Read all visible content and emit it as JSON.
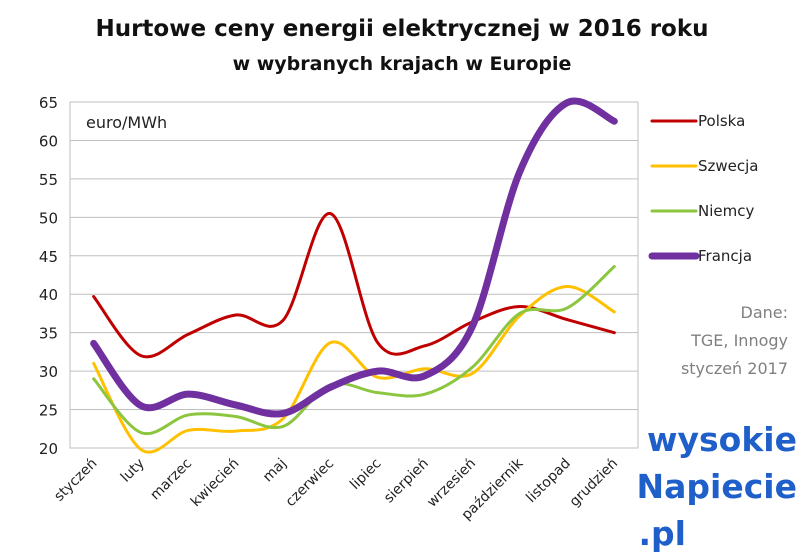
{
  "chart_data": {
    "type": "line",
    "title": "Hurtowe ceny energii elektrycznej w 2016 roku",
    "subtitle": "w wybranych krajach w Europie",
    "unit_label": "euro/MWh",
    "categories": [
      "styczeń",
      "luty",
      "marzec",
      "kwiecień",
      "maj",
      "czerwiec",
      "lipiec",
      "sierpień",
      "wrzesień",
      "październik",
      "listopad",
      "grudzień"
    ],
    "ylim": [
      20,
      65
    ],
    "yticks": [
      20,
      25,
      30,
      35,
      40,
      45,
      50,
      55,
      60,
      65
    ],
    "grid": true,
    "legend_position": "right",
    "series": [
      {
        "name": "Polska",
        "color": "#c00000",
        "values": [
          39.7,
          32.0,
          34.8,
          37.3,
          36.6,
          50.5,
          33.7,
          33.3,
          36.4,
          38.4,
          36.7,
          35.0
        ]
      },
      {
        "name": "Szwecja",
        "color": "#ffc000",
        "values": [
          31.0,
          19.8,
          22.3,
          22.2,
          23.8,
          33.7,
          29.2,
          30.3,
          29.7,
          37.2,
          41.0,
          37.7
        ]
      },
      {
        "name": "Niemcy",
        "color": "#8cc63f",
        "values": [
          29.0,
          22.0,
          24.3,
          24.1,
          22.8,
          28.2,
          27.2,
          27.0,
          30.5,
          37.5,
          38.2,
          43.6
        ]
      },
      {
        "name": "Francja",
        "color": "#7030a0",
        "values": [
          33.6,
          25.5,
          27.0,
          25.6,
          24.5,
          27.9,
          30.0,
          29.4,
          35.8,
          55.9,
          64.9,
          62.5
        ]
      }
    ]
  },
  "source_note": [
    "Dane:",
    "TGE, Innogy",
    "styczeń 2017"
  ],
  "logo": {
    "line1": "wysokie",
    "line2": "Napiecie",
    "line3": ".pl",
    "color": "#1f5fc9"
  }
}
